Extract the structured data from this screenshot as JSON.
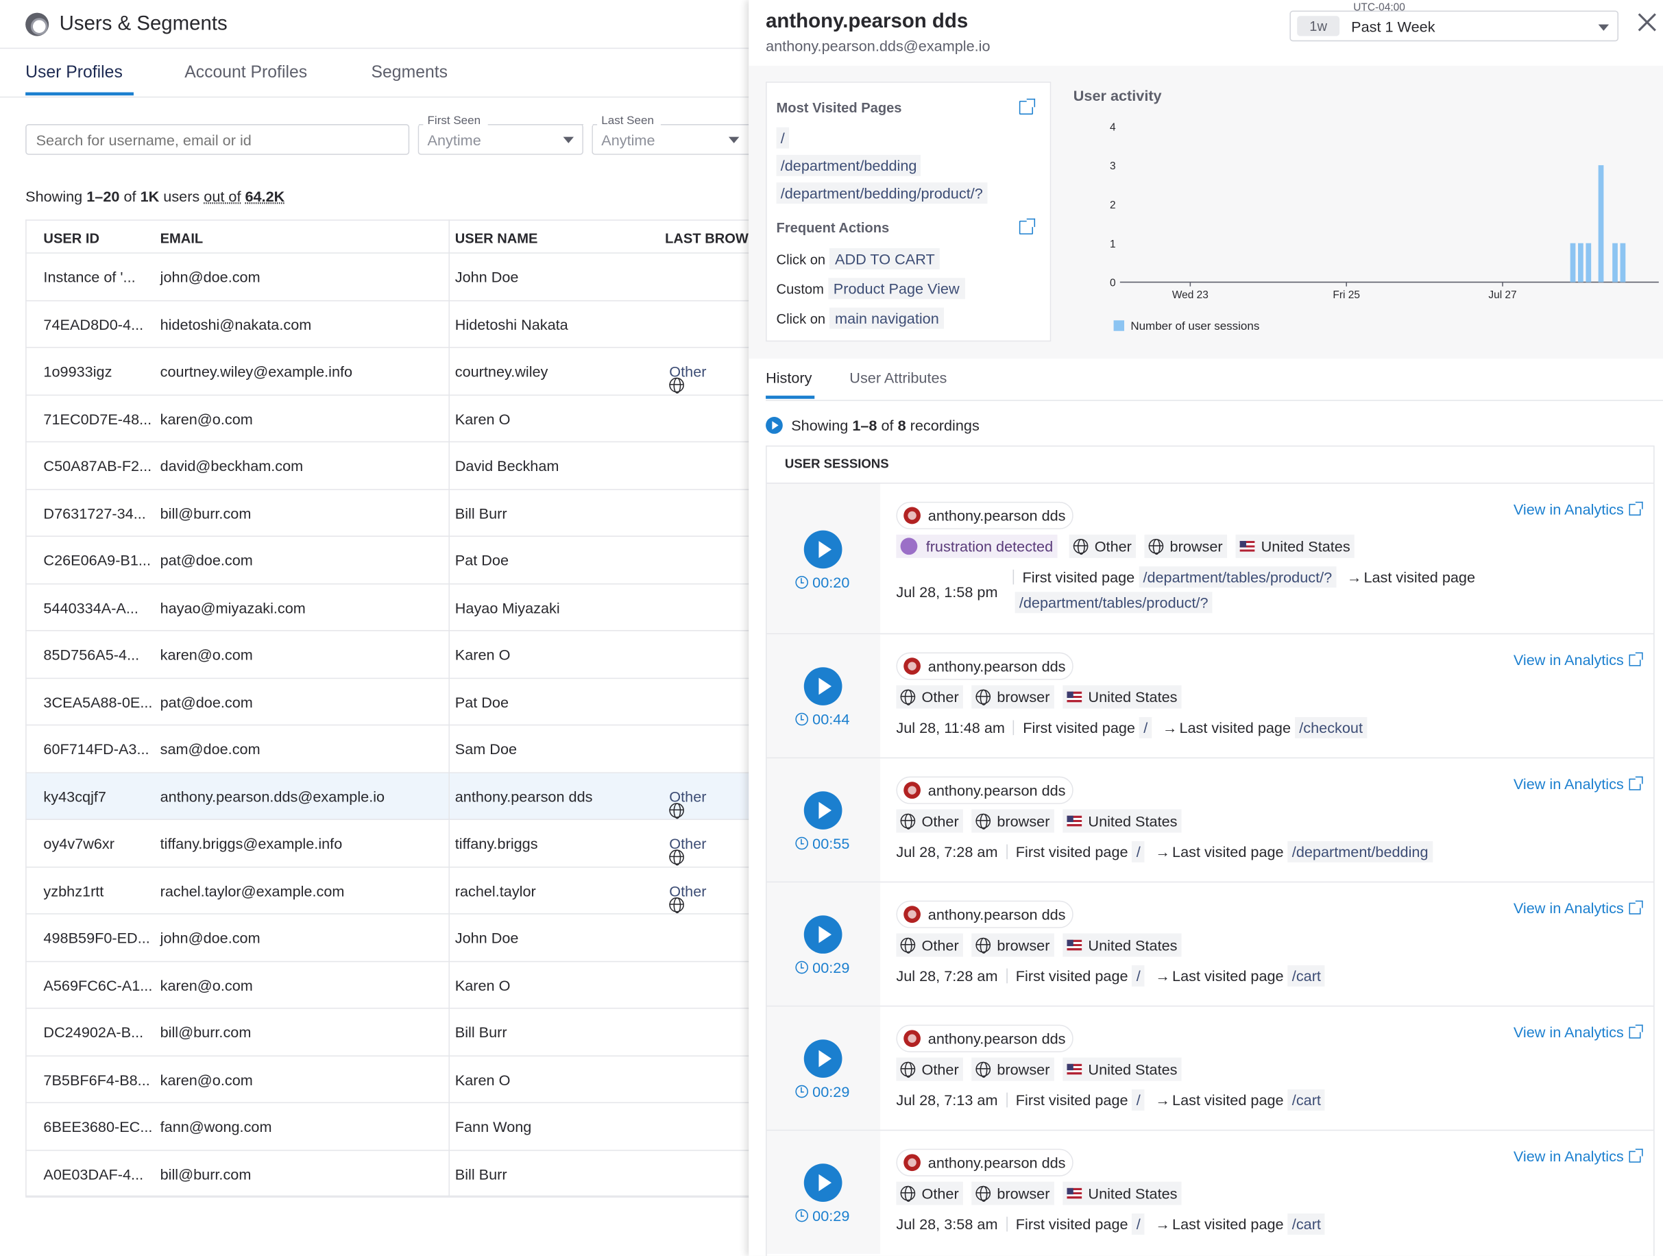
{
  "app": {
    "title": "Users & Segments",
    "tabs": [
      "User Profiles",
      "Account Profiles",
      "Segments"
    ]
  },
  "filters": {
    "search_placeholder": "Search for username, email or id",
    "first_seen": {
      "label": "First Seen",
      "value": "Anytime"
    },
    "last_seen": {
      "label": "Last Seen",
      "value": "Anytime"
    }
  },
  "summary": {
    "prefix": "Showing ",
    "range": "1–20",
    "of": " of ",
    "count": "1K",
    "users": " users ",
    "out_of": "out of",
    "space": " ",
    "total": "64.2K"
  },
  "table": {
    "headers": [
      "USER ID",
      "EMAIL",
      "USER NAME",
      "LAST BROWSE"
    ],
    "rows": [
      {
        "id": "Instance of '...",
        "email": "john@doe.com",
        "name": "John Doe",
        "browser": ""
      },
      {
        "id": "74EAD8D0-4...",
        "email": "hidetoshi@nakata.com",
        "name": "Hidetoshi Nakata",
        "browser": ""
      },
      {
        "id": "1o9933igz",
        "email": "courtney.wiley@example.info",
        "name": "courtney.wiley",
        "browser": "Other"
      },
      {
        "id": "71EC0D7E-48...",
        "email": "karen@o.com",
        "name": "Karen O",
        "browser": ""
      },
      {
        "id": "C50A87AB-F2...",
        "email": "david@beckham.com",
        "name": "David Beckham",
        "browser": ""
      },
      {
        "id": "D7631727-34...",
        "email": "bill@burr.com",
        "name": "Bill Burr",
        "browser": ""
      },
      {
        "id": "C26E06A9-B1...",
        "email": "pat@doe.com",
        "name": "Pat Doe",
        "browser": ""
      },
      {
        "id": "5440334A-A...",
        "email": "hayao@miyazaki.com",
        "name": "Hayao Miyazaki",
        "browser": ""
      },
      {
        "id": "85D756A5-4...",
        "email": "karen@o.com",
        "name": "Karen O",
        "browser": ""
      },
      {
        "id": "3CEA5A88-0E...",
        "email": "pat@doe.com",
        "name": "Pat Doe",
        "browser": ""
      },
      {
        "id": "60F714FD-A3...",
        "email": "sam@doe.com",
        "name": "Sam Doe",
        "browser": ""
      },
      {
        "id": "ky43cqjf7",
        "email": "anthony.pearson.dds@example.io",
        "name": "anthony.pearson dds",
        "browser": "Other"
      },
      {
        "id": "oy4v7w6xr",
        "email": "tiffany.briggs@example.info",
        "name": "tiffany.briggs",
        "browser": "Other"
      },
      {
        "id": "yzbhz1rtt",
        "email": "rachel.taylor@example.com",
        "name": "rachel.taylor",
        "browser": "Other"
      },
      {
        "id": "498B59F0-ED...",
        "email": "john@doe.com",
        "name": "John Doe",
        "browser": ""
      },
      {
        "id": "A569FC6C-A1...",
        "email": "karen@o.com",
        "name": "Karen O",
        "browser": ""
      },
      {
        "id": "DC24902A-B...",
        "email": "bill@burr.com",
        "name": "Bill Burr",
        "browser": ""
      },
      {
        "id": "7B5BF6F4-B8...",
        "email": "karen@o.com",
        "name": "Karen O",
        "browser": ""
      },
      {
        "id": "6BEE3680-EC...",
        "email": "fann@wong.com",
        "name": "Fann Wong",
        "browser": ""
      },
      {
        "id": "A0E03DAF-4...",
        "email": "bill@burr.com",
        "name": "Bill Burr",
        "browser": ""
      }
    ]
  },
  "panel": {
    "name": "anthony.pearson dds",
    "email": "anthony.pearson.dds@example.io",
    "timezone": "UTC-04:00",
    "range_pill": "1w",
    "range_label": "Past 1 Week",
    "most_visited_title": "Most Visited Pages",
    "pages": [
      "/",
      "/department/bedding",
      "/department/bedding/product/?"
    ],
    "frequent_title": "Frequent Actions",
    "actions": [
      {
        "verb": "Click on",
        "target": "ADD TO CART"
      },
      {
        "verb": "Custom",
        "target": "Product Page View"
      },
      {
        "verb": "Click on",
        "target": "main navigation"
      }
    ],
    "activity_title": "User activity",
    "subtabs": [
      "History",
      "User Attributes"
    ],
    "rec": {
      "prefix": "Showing ",
      "range": "1–8",
      "of": " of ",
      "count": "8",
      "suffix": " recordings"
    },
    "sessions_header": "USER SESSIONS",
    "view_label": "View in Analytics",
    "first_label": "First visited page",
    "last_label": "Last visited page",
    "sessions": [
      {
        "user": "anthony.pearson dds",
        "frustration": "frustration detected",
        "browser": "Other",
        "app": "browser",
        "country": "United States",
        "date": "Jul 28, 1:58 pm",
        "first": "/department/tables/product/?",
        "last": "/department/tables/product/?",
        "duration": "00:20"
      },
      {
        "user": "anthony.pearson dds",
        "browser": "Other",
        "app": "browser",
        "country": "United States",
        "date": "Jul 28, 11:48 am",
        "first": "/",
        "last": "/checkout",
        "duration": "00:44"
      },
      {
        "user": "anthony.pearson dds",
        "browser": "Other",
        "app": "browser",
        "country": "United States",
        "date": "Jul 28, 7:28 am",
        "first": "/",
        "last": "/department/bedding",
        "duration": "00:55"
      },
      {
        "user": "anthony.pearson dds",
        "browser": "Other",
        "app": "browser",
        "country": "United States",
        "date": "Jul 28, 7:28 am",
        "first": "/",
        "last": "/cart",
        "duration": "00:29"
      },
      {
        "user": "anthony.pearson dds",
        "browser": "Other",
        "app": "browser",
        "country": "United States",
        "date": "Jul 28, 7:13 am",
        "first": "/",
        "last": "/cart",
        "duration": "00:29"
      },
      {
        "user": "anthony.pearson dds",
        "browser": "Other",
        "app": "browser",
        "country": "United States",
        "date": "Jul 28, 3:58 am",
        "first": "/",
        "last": "/cart",
        "duration": "00:29"
      }
    ]
  },
  "chart_data": {
    "type": "bar",
    "title": "User activity",
    "ylabel": "",
    "xlabel": "",
    "ylim": [
      0,
      4
    ],
    "yticks": [
      0,
      1,
      2,
      3,
      4
    ],
    "xticks": [
      "Wed 23",
      "Fri 25",
      "Jul 27"
    ],
    "xtick_pos": [
      1.0,
      2.0,
      3.0
    ],
    "series": [
      {
        "name": "Number of user sessions",
        "color": "#8cc4f2",
        "x": [
          3.45,
          3.5,
          3.55,
          3.63,
          3.72,
          3.77
        ],
        "values": [
          1,
          1,
          1,
          3,
          1,
          1
        ]
      }
    ],
    "xlim": [
      0.55,
      4.0
    ],
    "grid": false,
    "legend": "bottom-left"
  }
}
